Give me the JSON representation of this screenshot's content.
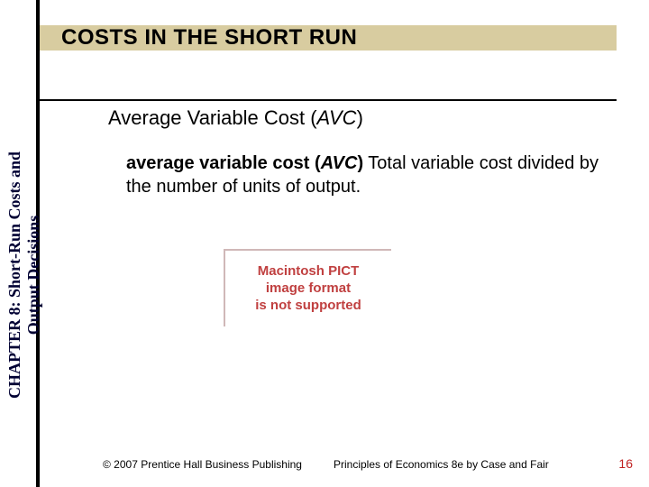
{
  "colors": {
    "title_band_bg": "#d8cca0",
    "vertical_bar": "#000000",
    "chapter_label": "#000033",
    "pict_text": "#c04040",
    "pict_border": "#d0b8b8",
    "page_num": "#c02020",
    "bg": "#ffffff"
  },
  "title": "COSTS IN THE SHORT RUN",
  "subtitle": {
    "prefix": "Average Variable Cost (",
    "abbrev": "AVC",
    "suffix": ")"
  },
  "chapter_label_line1": "CHAPTER 8: Short-Run Costs and",
  "chapter_label_line2": "Output Decisions",
  "body": {
    "term": "average variable cost (",
    "abbrev": "AVC",
    "term_close": ")",
    "definition": " Total variable cost divided by the number of units of output."
  },
  "pict_line1": "Macintosh PICT",
  "pict_line2": "image format",
  "pict_line3": "is not supported",
  "footer": {
    "copyright": "© 2007 Prentice Hall Business Publishing",
    "book": "Principles of Economics 8e by Case and Fair",
    "page": "16"
  }
}
